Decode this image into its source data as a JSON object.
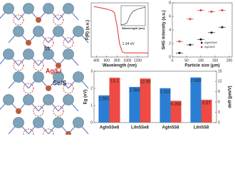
{
  "structure": {
    "labels": [
      "In",
      "Ag/Li",
      "Se/S"
    ]
  },
  "chart_data": [
    {
      "type": "line",
      "xlabel": "Wavelength (nm)",
      "ylabel": "F(R) (a.u.)",
      "annotation": "1.34 eV",
      "x": [
        350,
        400,
        500,
        600,
        700,
        750,
        800,
        850,
        900,
        950,
        1000,
        1100,
        1200,
        1300,
        1400
      ],
      "values": [
        0.98,
        0.97,
        0.95,
        0.93,
        0.9,
        0.86,
        0.6,
        0.25,
        0.1,
        0.08,
        0.08,
        0.08,
        0.08,
        0.08,
        0.08
      ],
      "color": "#e0302a",
      "xlim": [
        300,
        1400
      ],
      "xticks": [
        400,
        600,
        800,
        1000,
        1200
      ],
      "ylim": [
        0,
        1.05
      ]
    },
    {
      "type": "line",
      "xlabel": "Wavelength (nm)",
      "x": [
        1.0,
        1.2,
        1.3,
        1.4,
        1.5,
        1.6,
        1.8,
        2.0,
        2.2
      ],
      "values": [
        0.05,
        0.08,
        0.15,
        0.4,
        0.6,
        0.72,
        0.82,
        0.88,
        0.92
      ],
      "color": "#222222",
      "xlim": [
        1.0,
        2.2
      ],
      "ylim": [
        0,
        1
      ]
    },
    {
      "type": "scatter",
      "xlabel": "Particle size (μm)",
      "ylabel": "SHG intensity (a.u.)",
      "x": [
        25,
        62.5,
        100,
        137.5,
        175
      ],
      "xerr": [
        12.5,
        12.5,
        12.5,
        12.5,
        12.5
      ],
      "series": [
        {
          "name": "AgIn5Se8",
          "color": "#111111",
          "values": [
            0.6,
            1.8,
            2.6,
            3.6,
            4.4
          ]
        },
        {
          "name": "AgGaS2",
          "color": "#e0302a",
          "values": [
            2.3,
            5.6,
            6.9,
            6.7,
            6.9
          ]
        }
      ],
      "xlim": [
        0,
        210
      ],
      "xticks": [
        0,
        50,
        100,
        150,
        200
      ],
      "ylim": [
        0,
        8
      ],
      "yticks": [
        0,
        2,
        4,
        6,
        8
      ],
      "legend": "bottom-right"
    },
    {
      "type": "bar",
      "ylabel": "Eg (eV)",
      "y2label": "deff (pm/V)",
      "categories": [
        "AgIn5Se8",
        "LiIn5Se8",
        "AgIn5S8",
        "LiIn5S8"
      ],
      "series": [
        {
          "color": "#2a7fd4",
          "values": [
            1.591,
            2.084,
            2.012,
            2.639
          ]
        },
        {
          "color": "#ef4a43",
          "axis": "y2",
          "values": [
            13.1,
            12.89,
            6.359,
            6.67
          ]
        }
      ],
      "ylim": [
        0,
        3
      ],
      "yticks": [
        0,
        1,
        2,
        3
      ],
      "y2lim": [
        0,
        15
      ],
      "y2ticks": [
        0,
        3,
        6,
        9,
        12,
        15
      ]
    }
  ]
}
